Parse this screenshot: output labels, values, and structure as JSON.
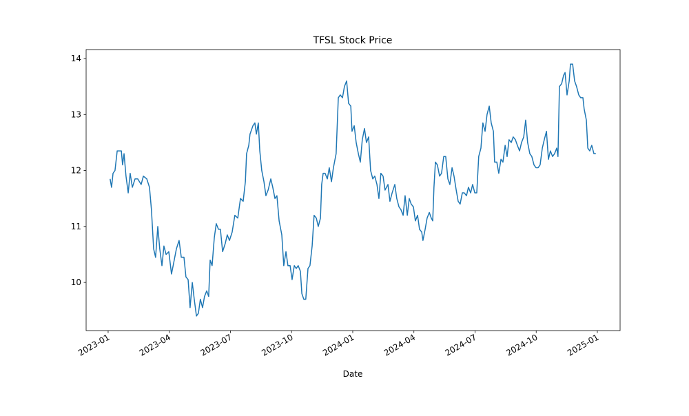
{
  "chart_data": {
    "type": "line",
    "title": "TFSL Stock Price",
    "x_label": "Date",
    "color": "#1f77b4",
    "xlim": [
      2022.91,
      2025.093
    ],
    "ylim": [
      9.14,
      14.16
    ],
    "xticks": [
      {
        "value": 2023.0,
        "label": "2023-01"
      },
      {
        "value": 2023.25,
        "label": "2023-04"
      },
      {
        "value": 2023.5,
        "label": "2023-07"
      },
      {
        "value": 2023.75,
        "label": "2023-10"
      },
      {
        "value": 2024.0,
        "label": "2024-01"
      },
      {
        "value": 2024.25,
        "label": "2024-04"
      },
      {
        "value": 2024.5,
        "label": "2024-07"
      },
      {
        "value": 2024.75,
        "label": "2024-10"
      },
      {
        "value": 2025.0,
        "label": "2025-01"
      }
    ],
    "yticks": [
      10,
      11,
      12,
      13,
      14
    ],
    "x": [
      2023.008,
      2023.014,
      2023.02,
      2023.028,
      2023.037,
      2023.054,
      2023.059,
      2023.065,
      2023.073,
      2023.082,
      2023.09,
      2023.099,
      2023.11,
      2023.121,
      2023.135,
      2023.144,
      2023.158,
      2023.169,
      2023.177,
      2023.186,
      2023.194,
      2023.203,
      2023.211,
      2023.22,
      2023.228,
      2023.237,
      2023.248,
      2023.259,
      2023.268,
      2023.279,
      2023.29,
      2023.299,
      2023.31,
      2023.318,
      2023.327,
      2023.335,
      2023.344,
      2023.352,
      2023.361,
      2023.369,
      2023.377,
      2023.386,
      2023.394,
      2023.403,
      2023.411,
      2023.417,
      2023.425,
      2023.434,
      2023.442,
      2023.451,
      2023.459,
      2023.468,
      2023.479,
      2023.487,
      2023.496,
      2023.507,
      2023.518,
      2023.53,
      2023.541,
      2023.552,
      2023.561,
      2023.566,
      2023.575,
      2023.58,
      2023.592,
      2023.6,
      2023.606,
      2023.614,
      2023.62,
      2023.628,
      2023.637,
      2023.645,
      2023.654,
      2023.665,
      2023.673,
      2023.682,
      2023.69,
      2023.699,
      2023.71,
      2023.718,
      2023.727,
      2023.735,
      2023.744,
      2023.752,
      2023.761,
      2023.769,
      2023.777,
      2023.786,
      2023.792,
      2023.8,
      2023.808,
      2023.817,
      2023.825,
      2023.834,
      2023.842,
      2023.851,
      2023.859,
      2023.868,
      2023.873,
      2023.879,
      2023.887,
      2023.896,
      2023.904,
      2023.913,
      2023.921,
      2023.932,
      2023.941,
      2023.949,
      2023.958,
      2023.966,
      2023.975,
      2023.983,
      2023.992,
      2023.997,
      2024.006,
      2024.014,
      2024.023,
      2024.031,
      2024.039,
      2024.048,
      2024.056,
      2024.065,
      2024.073,
      2024.082,
      2024.09,
      2024.099,
      2024.107,
      2024.115,
      2024.124,
      2024.132,
      2024.144,
      2024.152,
      2024.161,
      2024.172,
      2024.18,
      2024.189,
      2024.197,
      2024.206,
      2024.214,
      2024.223,
      2024.231,
      2024.239,
      2024.248,
      2024.256,
      2024.265,
      2024.273,
      2024.282,
      2024.287,
      2024.296,
      2024.304,
      2024.313,
      2024.321,
      2024.327,
      2024.332,
      2024.338,
      2024.346,
      2024.355,
      2024.363,
      2024.372,
      2024.38,
      2024.389,
      2024.397,
      2024.406,
      2024.414,
      2024.423,
      2024.431,
      2024.439,
      2024.448,
      2024.456,
      2024.465,
      2024.473,
      2024.482,
      2024.49,
      2024.499,
      2024.507,
      2024.515,
      2024.524,
      2024.532,
      2024.541,
      2024.549,
      2024.558,
      2024.566,
      2024.575,
      2024.58,
      2024.589,
      2024.597,
      2024.606,
      2024.614,
      2024.623,
      2024.631,
      2024.639,
      2024.648,
      2024.656,
      2024.665,
      2024.673,
      2024.682,
      2024.69,
      2024.699,
      2024.707,
      2024.715,
      2024.724,
      2024.732,
      2024.741,
      2024.749,
      2024.758,
      2024.766,
      2024.775,
      2024.783,
      2024.792,
      2024.8,
      2024.808,
      2024.817,
      2024.825,
      2024.834,
      2024.839,
      2024.845,
      2024.854,
      2024.862,
      2024.868,
      2024.876,
      2024.885,
      2024.89,
      2024.899,
      2024.907,
      2024.915,
      2024.924,
      2024.932,
      2024.941,
      2024.946,
      2024.955,
      2024.961,
      2024.969,
      2024.977,
      2024.986,
      2024.994
    ],
    "values": [
      11.85,
      11.7,
      11.95,
      12.0,
      12.35,
      12.35,
      12.1,
      12.3,
      11.9,
      11.6,
      11.95,
      11.7,
      11.85,
      11.85,
      11.75,
      11.9,
      11.85,
      11.7,
      11.3,
      10.6,
      10.45,
      11.0,
      10.6,
      10.3,
      10.65,
      10.5,
      10.55,
      10.15,
      10.35,
      10.6,
      10.75,
      10.45,
      10.45,
      10.1,
      10.05,
      9.55,
      10.0,
      9.7,
      9.4,
      9.45,
      9.7,
      9.55,
      9.75,
      9.85,
      9.75,
      10.4,
      10.3,
      10.8,
      11.05,
      10.95,
      10.95,
      10.55,
      10.7,
      10.85,
      10.75,
      10.9,
      11.2,
      11.15,
      11.5,
      11.45,
      11.8,
      12.3,
      12.45,
      12.65,
      12.8,
      12.85,
      12.65,
      12.85,
      12.35,
      12.0,
      11.8,
      11.55,
      11.65,
      11.85,
      11.7,
      11.5,
      11.55,
      11.1,
      10.85,
      10.3,
      10.55,
      10.3,
      10.3,
      10.05,
      10.3,
      10.25,
      10.3,
      10.2,
      9.8,
      9.7,
      9.7,
      10.25,
      10.3,
      10.65,
      11.2,
      11.15,
      11.0,
      11.15,
      11.75,
      11.95,
      11.95,
      11.85,
      12.05,
      11.8,
      12.05,
      12.3,
      13.3,
      13.35,
      13.3,
      13.5,
      13.6,
      13.2,
      13.15,
      12.7,
      12.8,
      12.5,
      12.3,
      12.15,
      12.55,
      12.75,
      12.5,
      12.6,
      12.0,
      11.85,
      11.9,
      11.75,
      11.5,
      11.95,
      11.9,
      11.65,
      11.75,
      11.45,
      11.6,
      11.75,
      11.5,
      11.35,
      11.3,
      11.2,
      11.55,
      11.2,
      11.5,
      11.4,
      11.35,
      11.1,
      11.2,
      10.95,
      10.9,
      10.75,
      10.95,
      11.15,
      11.25,
      11.15,
      11.1,
      11.7,
      12.15,
      12.1,
      11.9,
      11.95,
      12.25,
      12.25,
      11.85,
      11.75,
      12.05,
      11.9,
      11.65,
      11.45,
      11.4,
      11.6,
      11.6,
      11.55,
      11.7,
      11.6,
      11.75,
      11.6,
      11.6,
      12.25,
      12.4,
      12.85,
      12.7,
      13.0,
      13.15,
      12.85,
      12.7,
      12.15,
      12.15,
      11.95,
      12.2,
      12.15,
      12.45,
      12.25,
      12.55,
      12.5,
      12.6,
      12.55,
      12.45,
      12.35,
      12.5,
      12.6,
      12.9,
      12.5,
      12.3,
      12.25,
      12.1,
      12.05,
      12.05,
      12.1,
      12.4,
      12.55,
      12.7,
      12.2,
      12.35,
      12.25,
      12.3,
      12.4,
      12.25,
      13.5,
      13.55,
      13.7,
      13.75,
      13.35,
      13.6,
      13.9,
      13.9,
      13.6,
      13.5,
      13.35,
      13.3,
      13.3,
      13.1,
      12.9,
      12.4,
      12.35,
      12.45,
      12.3,
      12.3
    ]
  }
}
